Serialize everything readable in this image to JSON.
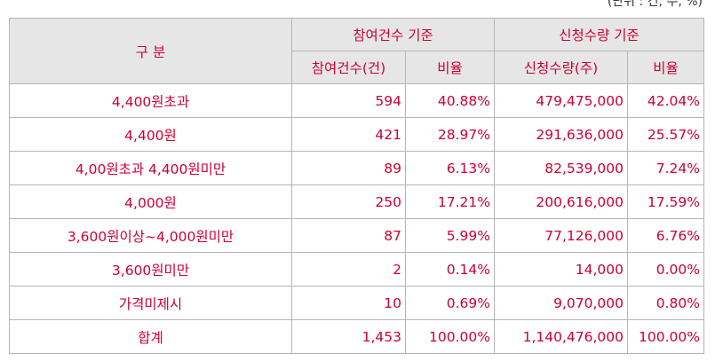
{
  "unit_note": "(단위 : 건, 주, %)",
  "headers": {
    "category": "구 분",
    "group_count": "참여건수 기준",
    "group_qty": "신청수량 기준",
    "count": "참여건수(건)",
    "ratio1": "비율",
    "qty": "신청수량(주)",
    "ratio2": "비율"
  },
  "rows": [
    {
      "label": "4,400원초과",
      "count": "594",
      "ratio1": "40.88%",
      "qty": "479,475,000",
      "ratio2": "42.04%"
    },
    {
      "label": "4,400원",
      "count": "421",
      "ratio1": "28.97%",
      "qty": "291,636,000",
      "ratio2": "25.57%"
    },
    {
      "label": "4,00원초과 4,400원미만",
      "count": "89",
      "ratio1": "6.13%",
      "qty": "82,539,000",
      "ratio2": "7.24%"
    },
    {
      "label": "4,000원",
      "count": "250",
      "ratio1": "17.21%",
      "qty": "200,616,000",
      "ratio2": "17.59%"
    },
    {
      "label": "3,600원이상~4,000원미만",
      "count": "87",
      "ratio1": "5.99%",
      "qty": "77,126,000",
      "ratio2": "6.76%"
    },
    {
      "label": "3,600원미만",
      "count": "2",
      "ratio1": "0.14%",
      "qty": "14,000",
      "ratio2": "0.00%"
    },
    {
      "label": "가격미제시",
      "count": "10",
      "ratio1": "0.69%",
      "qty": "9,070,000",
      "ratio2": "0.80%"
    },
    {
      "label": "합계",
      "count": "1,453",
      "ratio1": "100.00%",
      "qty": "1,140,476,000",
      "ratio2": "100.00%"
    }
  ]
}
